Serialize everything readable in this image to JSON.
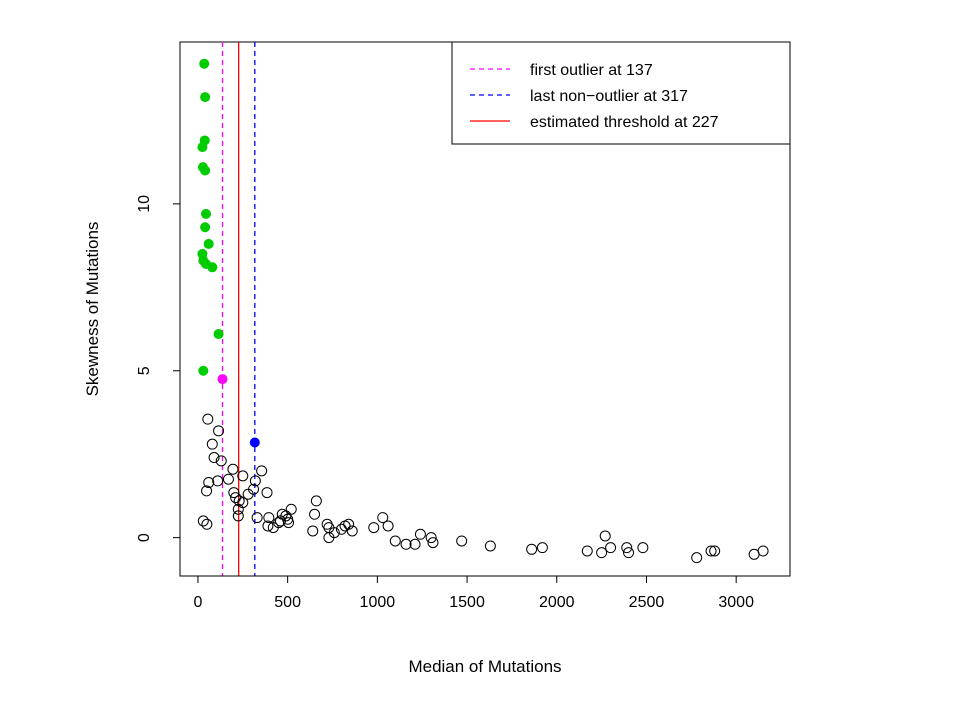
{
  "chart_data": {
    "type": "scatter",
    "xlabel": "Median of Mutations",
    "ylabel": "Skewness of Mutations",
    "xlim": [
      -100,
      3300
    ],
    "ylim": [
      -1.15,
      14.85
    ],
    "xticks": [
      0,
      500,
      1000,
      1500,
      2000,
      2500,
      3000
    ],
    "yticks": [
      0,
      5,
      10
    ],
    "grid": false,
    "legend_position": "top-right",
    "legend": [
      {
        "label": "first outlier at 137",
        "color": "#ff00ff",
        "style": "dashed"
      },
      {
        "label": "last non−outlier at 317",
        "color": "#0000ff",
        "style": "dashed"
      },
      {
        "label": "estimated threshold at 227",
        "color": "#ff0000",
        "style": "solid"
      }
    ],
    "vlines": [
      {
        "x": 137,
        "color": "#ff00ff",
        "style": "dashed"
      },
      {
        "x": 317,
        "color": "#0000ff",
        "style": "dashed"
      },
      {
        "x": 227,
        "color": "#ff0000",
        "style": "solid"
      }
    ],
    "series": [
      {
        "marker": "filled-circle",
        "color": "#00cc00",
        "points": [
          [
            35,
            14.2
          ],
          [
            40,
            13.2
          ],
          [
            38,
            11.9
          ],
          [
            25,
            11.7
          ],
          [
            28,
            11.1
          ],
          [
            40,
            11.0
          ],
          [
            45,
            9.7
          ],
          [
            40,
            9.3
          ],
          [
            60,
            8.8
          ],
          [
            25,
            8.5
          ],
          [
            30,
            8.3
          ],
          [
            45,
            8.2
          ],
          [
            80,
            8.1
          ],
          [
            115,
            6.1
          ],
          [
            30,
            5.0
          ]
        ]
      },
      {
        "marker": "filled-circle",
        "color": "#ff00ff",
        "points": [
          [
            137,
            4.75
          ]
        ]
      },
      {
        "marker": "filled-circle",
        "color": "#0000ff",
        "points": [
          [
            317,
            2.85
          ]
        ]
      },
      {
        "marker": "open-circle",
        "color": "#000000",
        "points": [
          [
            55,
            3.55
          ],
          [
            115,
            3.2
          ],
          [
            80,
            2.8
          ],
          [
            90,
            2.4
          ],
          [
            130,
            2.3
          ],
          [
            195,
            2.05
          ],
          [
            355,
            2.0
          ],
          [
            60,
            1.65
          ],
          [
            110,
            1.7
          ],
          [
            170,
            1.75
          ],
          [
            250,
            1.85
          ],
          [
            320,
            1.7
          ],
          [
            48,
            1.4
          ],
          [
            200,
            1.35
          ],
          [
            210,
            1.2
          ],
          [
            230,
            1.1
          ],
          [
            250,
            1.05
          ],
          [
            280,
            1.3
          ],
          [
            310,
            1.45
          ],
          [
            385,
            1.35
          ],
          [
            225,
            0.85
          ],
          [
            225,
            0.65
          ],
          [
            330,
            0.6
          ],
          [
            395,
            0.6
          ],
          [
            460,
            0.5
          ],
          [
            490,
            0.65
          ],
          [
            500,
            0.55
          ],
          [
            520,
            0.85
          ],
          [
            30,
            0.5
          ],
          [
            50,
            0.4
          ],
          [
            390,
            0.35
          ],
          [
            420,
            0.3
          ],
          [
            450,
            0.45
          ],
          [
            470,
            0.7
          ],
          [
            505,
            0.45
          ],
          [
            660,
            1.1
          ],
          [
            650,
            0.7
          ],
          [
            640,
            0.2
          ],
          [
            720,
            0.4
          ],
          [
            730,
            0.3
          ],
          [
            760,
            0.15
          ],
          [
            800,
            0.25
          ],
          [
            820,
            0.35
          ],
          [
            840,
            0.4
          ],
          [
            860,
            0.2
          ],
          [
            730,
            0.0
          ],
          [
            980,
            0.3
          ],
          [
            1030,
            0.6
          ],
          [
            1060,
            0.35
          ],
          [
            1100,
            -0.1
          ],
          [
            1160,
            -0.2
          ],
          [
            1210,
            -0.2
          ],
          [
            1240,
            0.1
          ],
          [
            1300,
            0.0
          ],
          [
            1310,
            -0.15
          ],
          [
            1470,
            -0.1
          ],
          [
            1630,
            -0.25
          ],
          [
            1860,
            -0.35
          ],
          [
            1920,
            -0.3
          ],
          [
            2170,
            -0.4
          ],
          [
            2250,
            -0.45
          ],
          [
            2270,
            0.05
          ],
          [
            2300,
            -0.3
          ],
          [
            2390,
            -0.3
          ],
          [
            2400,
            -0.45
          ],
          [
            2480,
            -0.3
          ],
          [
            2780,
            -0.6
          ],
          [
            2860,
            -0.4
          ],
          [
            2880,
            -0.4
          ],
          [
            3100,
            -0.5
          ],
          [
            3150,
            -0.4
          ]
        ]
      }
    ]
  }
}
